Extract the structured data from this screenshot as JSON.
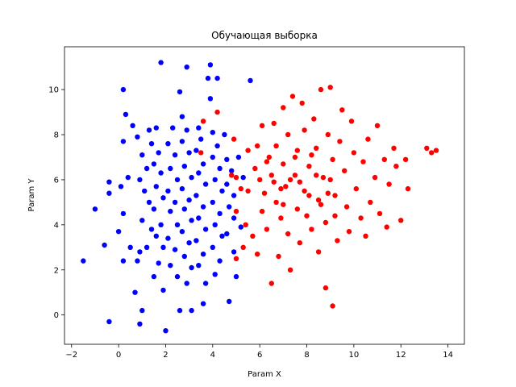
{
  "chart_data": {
    "type": "scatter",
    "title": "Обучающая выборка",
    "xlabel": "Param X",
    "ylabel": "Param Y",
    "xlim": [
      -2.3,
      14.7
    ],
    "ylim": [
      -1.3,
      11.9
    ],
    "xticks": [
      -2,
      0,
      2,
      4,
      6,
      8,
      10,
      12,
      14
    ],
    "yticks": [
      0,
      2,
      4,
      6,
      8,
      10
    ],
    "grid": false,
    "legend": "none",
    "series": [
      {
        "color": "#0000ff",
        "points": [
          [
            -1.5,
            2.4
          ],
          [
            -1.0,
            4.7
          ],
          [
            -0.6,
            3.1
          ],
          [
            -0.4,
            -0.3
          ],
          [
            -0.4,
            5.4
          ],
          [
            -0.4,
            5.9
          ],
          [
            0.2,
            10.0
          ],
          [
            0.3,
            8.9
          ],
          [
            0.2,
            7.7
          ],
          [
            0.4,
            6.1
          ],
          [
            0.1,
            5.7
          ],
          [
            0.2,
            4.5
          ],
          [
            0.0,
            3.7
          ],
          [
            0.2,
            2.4
          ],
          [
            0.5,
            3.0
          ],
          [
            0.8,
            2.4
          ],
          [
            0.7,
            1.0
          ],
          [
            0.9,
            -0.4
          ],
          [
            1.0,
            0.2
          ],
          [
            0.6,
            8.4
          ],
          [
            0.8,
            7.9
          ],
          [
            1.0,
            7.1
          ],
          [
            1.2,
            6.5
          ],
          [
            0.9,
            6.0
          ],
          [
            1.1,
            5.5
          ],
          [
            1.3,
            5.0
          ],
          [
            1.0,
            4.2
          ],
          [
            1.4,
            3.8
          ],
          [
            1.2,
            3.0
          ],
          [
            0.9,
            2.8
          ],
          [
            1.3,
            8.2
          ],
          [
            1.6,
            8.3
          ],
          [
            1.4,
            7.6
          ],
          [
            1.7,
            7.2
          ],
          [
            1.5,
            6.7
          ],
          [
            1.8,
            6.3
          ],
          [
            1.6,
            5.7
          ],
          [
            1.9,
            5.2
          ],
          [
            1.5,
            4.7
          ],
          [
            1.8,
            4.0
          ],
          [
            1.6,
            3.5
          ],
          [
            1.9,
            3.0
          ],
          [
            1.7,
            2.3
          ],
          [
            1.5,
            1.7
          ],
          [
            1.9,
            1.1
          ],
          [
            1.8,
            11.2
          ],
          [
            2.3,
            8.3
          ],
          [
            2.1,
            7.6
          ],
          [
            2.4,
            7.1
          ],
          [
            2.2,
            6.5
          ],
          [
            2.5,
            6.0
          ],
          [
            2.1,
            5.5
          ],
          [
            2.4,
            5.0
          ],
          [
            2.2,
            4.6
          ],
          [
            2.5,
            4.0
          ],
          [
            2.1,
            3.4
          ],
          [
            2.4,
            2.9
          ],
          [
            2.2,
            2.2
          ],
          [
            2.5,
            1.7
          ],
          [
            2.0,
            -0.7
          ],
          [
            2.7,
            8.8
          ],
          [
            2.9,
            8.2
          ],
          [
            2.7,
            7.7
          ],
          [
            3.0,
            7.2
          ],
          [
            2.8,
            6.6
          ],
          [
            3.1,
            6.1
          ],
          [
            2.7,
            5.6
          ],
          [
            3.0,
            5.1
          ],
          [
            2.8,
            4.7
          ],
          [
            3.1,
            4.2
          ],
          [
            2.7,
            3.7
          ],
          [
            3.0,
            3.2
          ],
          [
            2.8,
            2.6
          ],
          [
            3.1,
            2.1
          ],
          [
            2.9,
            1.4
          ],
          [
            2.9,
            11.0
          ],
          [
            3.1,
            0.2
          ],
          [
            2.6,
            0.2
          ],
          [
            3.4,
            8.3
          ],
          [
            3.5,
            7.8
          ],
          [
            3.3,
            7.3
          ],
          [
            3.6,
            6.7
          ],
          [
            3.4,
            6.3
          ],
          [
            3.7,
            5.8
          ],
          [
            3.3,
            5.3
          ],
          [
            3.6,
            4.8
          ],
          [
            3.4,
            4.3
          ],
          [
            3.7,
            3.8
          ],
          [
            3.3,
            3.3
          ],
          [
            3.6,
            2.7
          ],
          [
            3.4,
            2.2
          ],
          [
            3.7,
            1.4
          ],
          [
            3.8,
            10.5
          ],
          [
            3.9,
            11.1
          ],
          [
            3.6,
            0.5
          ],
          [
            3.9,
            9.6
          ],
          [
            4.0,
            8.1
          ],
          [
            4.2,
            7.5
          ],
          [
            4.0,
            7.0
          ],
          [
            4.3,
            6.5
          ],
          [
            4.1,
            6.0
          ],
          [
            4.4,
            5.5
          ],
          [
            4.0,
            5.0
          ],
          [
            4.3,
            4.5
          ],
          [
            4.1,
            4.0
          ],
          [
            4.4,
            3.5
          ],
          [
            4.0,
            3.0
          ],
          [
            4.3,
            2.4
          ],
          [
            4.1,
            1.8
          ],
          [
            4.2,
            10.5
          ],
          [
            4.6,
            6.9
          ],
          [
            4.8,
            6.4
          ],
          [
            4.6,
            5.8
          ],
          [
            4.9,
            5.3
          ],
          [
            4.7,
            4.8
          ],
          [
            4.9,
            4.3
          ],
          [
            4.6,
            3.6
          ],
          [
            4.9,
            2.8
          ],
          [
            4.7,
            0.6
          ],
          [
            5.0,
            1.7
          ],
          [
            5.1,
            7.0
          ],
          [
            5.3,
            6.1
          ],
          [
            5.2,
            3.9
          ],
          [
            5.6,
            10.4
          ],
          [
            4.5,
            8.0
          ],
          [
            2.6,
            9.9
          ]
        ]
      },
      {
        "color": "#ff0000",
        "points": [
          [
            3.6,
            8.6
          ],
          [
            3.5,
            7.2
          ],
          [
            4.2,
            9.0
          ],
          [
            4.9,
            7.8
          ],
          [
            4.8,
            6.2
          ],
          [
            5.0,
            6.1
          ],
          [
            5.0,
            4.6
          ],
          [
            5.0,
            2.5
          ],
          [
            5.3,
            3.0
          ],
          [
            5.2,
            5.6
          ],
          [
            5.5,
            7.3
          ],
          [
            5.5,
            5.5
          ],
          [
            5.4,
            4.0
          ],
          [
            5.7,
            3.5
          ],
          [
            5.9,
            7.5
          ],
          [
            5.8,
            6.5
          ],
          [
            5.9,
            2.7
          ],
          [
            6.1,
            8.4
          ],
          [
            6.0,
            6.0
          ],
          [
            6.2,
            5.4
          ],
          [
            6.1,
            4.6
          ],
          [
            6.3,
            3.8
          ],
          [
            6.4,
            7.0
          ],
          [
            6.5,
            6.2
          ],
          [
            6.5,
            1.4
          ],
          [
            6.6,
            8.5
          ],
          [
            6.7,
            7.5
          ],
          [
            6.7,
            5.0
          ],
          [
            6.9,
            4.3
          ],
          [
            6.8,
            2.6
          ],
          [
            7.0,
            9.2
          ],
          [
            7.0,
            6.7
          ],
          [
            7.1,
            5.7
          ],
          [
            7.2,
            3.6
          ],
          [
            7.2,
            8.0
          ],
          [
            7.3,
            2.0
          ],
          [
            7.4,
            9.7
          ],
          [
            7.5,
            7.0
          ],
          [
            7.5,
            6.2
          ],
          [
            7.6,
            4.7
          ],
          [
            7.7,
            3.2
          ],
          [
            7.8,
            9.4
          ],
          [
            7.9,
            8.2
          ],
          [
            7.9,
            5.5
          ],
          [
            8.0,
            4.4
          ],
          [
            8.1,
            6.6
          ],
          [
            8.2,
            3.8
          ],
          [
            8.3,
            8.7
          ],
          [
            8.4,
            7.4
          ],
          [
            8.5,
            5.1
          ],
          [
            8.5,
            2.8
          ],
          [
            8.6,
            10.0
          ],
          [
            8.7,
            6.1
          ],
          [
            8.8,
            4.1
          ],
          [
            8.8,
            1.2
          ],
          [
            8.9,
            8.0
          ],
          [
            9.0,
            10.1
          ],
          [
            9.1,
            6.9
          ],
          [
            9.1,
            0.4
          ],
          [
            9.2,
            5.3
          ],
          [
            9.3,
            3.3
          ],
          [
            9.4,
            7.7
          ],
          [
            9.5,
            9.1
          ],
          [
            9.6,
            6.4
          ],
          [
            9.7,
            4.8
          ],
          [
            9.8,
            3.7
          ],
          [
            9.9,
            8.6
          ],
          [
            10.0,
            7.2
          ],
          [
            10.1,
            5.6
          ],
          [
            10.3,
            4.3
          ],
          [
            10.4,
            6.8
          ],
          [
            10.5,
            3.5
          ],
          [
            10.6,
            7.8
          ],
          [
            10.7,
            5.0
          ],
          [
            10.9,
            6.1
          ],
          [
            11.0,
            8.4
          ],
          [
            11.1,
            4.5
          ],
          [
            11.3,
            6.9
          ],
          [
            11.4,
            3.9
          ],
          [
            11.5,
            5.8
          ],
          [
            11.7,
            7.4
          ],
          [
            11.8,
            6.6
          ],
          [
            12.0,
            4.2
          ],
          [
            12.2,
            6.9
          ],
          [
            12.3,
            5.6
          ],
          [
            13.1,
            7.4
          ],
          [
            13.3,
            7.2
          ],
          [
            13.5,
            7.3
          ],
          [
            7.3,
            6.0
          ],
          [
            7.7,
            5.9
          ],
          [
            8.1,
            5.3
          ],
          [
            8.4,
            6.2
          ],
          [
            9.0,
            6.0
          ],
          [
            8.6,
            4.9
          ],
          [
            7.0,
            4.9
          ],
          [
            6.6,
            5.9
          ],
          [
            6.3,
            6.8
          ],
          [
            8.2,
            7.1
          ],
          [
            7.6,
            7.3
          ],
          [
            9.2,
            4.4
          ],
          [
            8.9,
            5.4
          ],
          [
            6.9,
            5.6
          ]
        ]
      }
    ]
  }
}
